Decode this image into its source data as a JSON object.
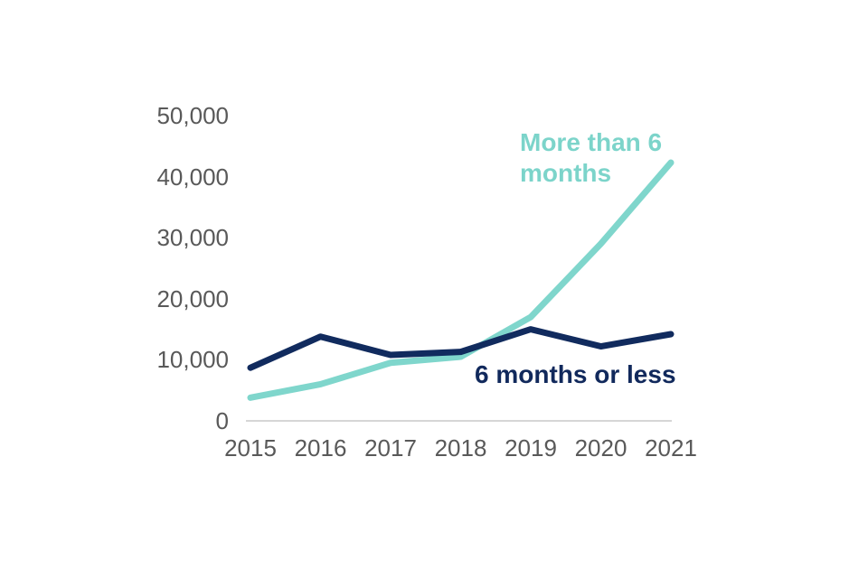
{
  "chart_data": {
    "type": "line",
    "title": "",
    "xlabel": "",
    "ylabel": "",
    "x": [
      "2015",
      "2016",
      "2017",
      "2018",
      "2019",
      "2020",
      "2021"
    ],
    "series": [
      {
        "name": "More than 6 months",
        "color": "#7fd6cc",
        "values": [
          3800,
          6000,
          9500,
          10500,
          17000,
          29000,
          42300
        ]
      },
      {
        "name": "6 months or less",
        "color": "#112b5e",
        "values": [
          8700,
          13800,
          10800,
          11300,
          15000,
          12200,
          14200
        ]
      }
    ],
    "ylim": [
      0,
      50000
    ],
    "ytick_step": 10000,
    "ytick_labels": [
      "0",
      "10,000",
      "20,000",
      "30,000",
      "40,000",
      "50,000"
    ],
    "grid": false,
    "legend_position": "inline-annotations",
    "axis_color": "#c9c9c9",
    "tick_label_color": "#595959",
    "line_width": 7
  },
  "annotations": [
    {
      "id": "more-than-6-months-label",
      "text_lines": [
        "More than 6",
        "months"
      ],
      "color": "#7cd4ca"
    },
    {
      "id": "six-months-or-less-label",
      "text_lines": [
        "6 months or less"
      ],
      "color": "#11295c"
    }
  ]
}
